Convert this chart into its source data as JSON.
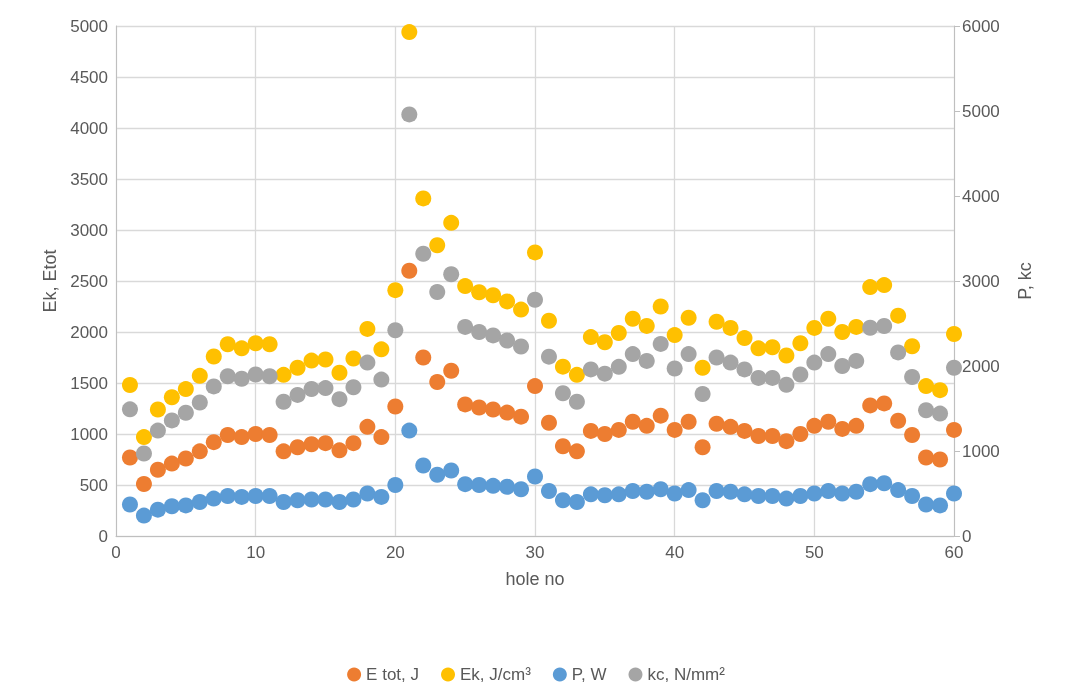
{
  "chart_data": {
    "type": "scatter",
    "xlabel": "hole no",
    "ylabel": "Ek, Etot",
    "y2label": "P, kc",
    "x": [
      1,
      2,
      3,
      4,
      5,
      6,
      7,
      8,
      9,
      10,
      11,
      12,
      13,
      14,
      15,
      16,
      17,
      18,
      19,
      20,
      21,
      22,
      23,
      24,
      25,
      26,
      27,
      28,
      29,
      30,
      31,
      32,
      33,
      34,
      35,
      36,
      37,
      38,
      39,
      40,
      41,
      42,
      43,
      44,
      45,
      46,
      47,
      48,
      49,
      50,
      51,
      52,
      53,
      54,
      55,
      56,
      57,
      58,
      59,
      60
    ],
    "series": [
      {
        "name": "E tot, J",
        "color": "#ed7d31",
        "values": [
          770,
          510,
          650,
          710,
          760,
          830,
          920,
          990,
          970,
          1000,
          990,
          830,
          870,
          900,
          910,
          840,
          910,
          1070,
          970,
          1270,
          2600,
          1750,
          1510,
          1620,
          1290,
          1260,
          1240,
          1210,
          1170,
          1470,
          1110,
          880,
          830,
          1030,
          1000,
          1040,
          1120,
          1080,
          1180,
          1040,
          1120,
          870,
          1100,
          1070,
          1030,
          980,
          980,
          930,
          1000,
          1080,
          1120,
          1050,
          1080,
          1280,
          1300,
          1130,
          990,
          770,
          750,
          1040
        ]
      },
      {
        "name": "Ek, J/cm³",
        "color": "#ffc000",
        "values": [
          1480,
          970,
          1240,
          1360,
          1440,
          1570,
          1760,
          1880,
          1840,
          1890,
          1880,
          1580,
          1650,
          1720,
          1730,
          1600,
          1740,
          2030,
          1830,
          2410,
          4940,
          3310,
          2850,
          3070,
          2450,
          2390,
          2360,
          2300,
          2220,
          2780,
          2110,
          1660,
          1580,
          1950,
          1900,
          1990,
          2130,
          2060,
          2250,
          1970,
          2140,
          1650,
          2100,
          2040,
          1940,
          1840,
          1850,
          1770,
          1890,
          2040,
          2130,
          2000,
          2050,
          2440,
          2460,
          2160,
          1860,
          1470,
          1430,
          1980
        ]
      },
      {
        "name": "P, W",
        "color": "#5b9bd5",
        "axis": "y2",
        "values": [
          370,
          240,
          310,
          350,
          360,
          400,
          440,
          470,
          460,
          470,
          470,
          400,
          420,
          430,
          430,
          400,
          430,
          500,
          460,
          600,
          1240,
          830,
          720,
          770,
          610,
          600,
          590,
          580,
          550,
          700,
          530,
          420,
          400,
          490,
          480,
          490,
          530,
          520,
          550,
          500,
          540,
          420,
          530,
          520,
          490,
          470,
          470,
          440,
          470,
          500,
          530,
          500,
          520,
          610,
          620,
          540,
          470,
          370,
          360,
          500
        ]
      },
      {
        "name": "kc, N/mm²",
        "color": "#a5a5a5",
        "axis": "y2",
        "values": [
          1490,
          970,
          1240,
          1360,
          1450,
          1570,
          1760,
          1880,
          1850,
          1900,
          1880,
          1580,
          1660,
          1730,
          1740,
          1610,
          1750,
          2040,
          1840,
          2420,
          4960,
          3320,
          2870,
          3080,
          2460,
          2400,
          2360,
          2300,
          2230,
          2780,
          2110,
          1680,
          1580,
          1960,
          1910,
          1990,
          2140,
          2060,
          2260,
          1970,
          2140,
          1670,
          2100,
          2040,
          1960,
          1860,
          1860,
          1780,
          1900,
          2040,
          2140,
          2000,
          2060,
          2450,
          2470,
          2160,
          1870,
          1480,
          1440,
          1980
        ]
      }
    ],
    "xlim": [
      0,
      60
    ],
    "xticks": [
      0,
      10,
      20,
      30,
      40,
      50,
      60
    ],
    "ylim": [
      0,
      5000
    ],
    "yticks": [
      0,
      500,
      1000,
      1500,
      2000,
      2500,
      3000,
      3500,
      4000,
      4500,
      5000
    ],
    "y2lim": [
      0,
      6000
    ],
    "y2ticks": [
      0,
      1000,
      2000,
      3000,
      4000,
      5000,
      6000
    ],
    "grid": true,
    "legend": "bottom",
    "marker": "circle"
  }
}
